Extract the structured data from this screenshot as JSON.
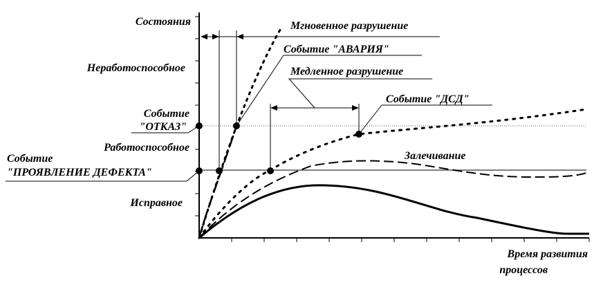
{
  "axes": {
    "y_title": "Состояния",
    "x_title_line1": "Время развития",
    "x_title_line2": "процессов"
  },
  "states": {
    "inoperable": "Неработоспособное",
    "operable": "Работоспособное",
    "serviceable": "Исправное"
  },
  "events": {
    "failure_line1": "Событие",
    "failure_line2": "\"ОТКАЗ\"",
    "defect_line1": "Событие",
    "defect_line2": "\"ПРОЯВЛЕНИЕ ДЕФЕКТА\""
  },
  "annotations": {
    "instant_destruction": "Мгновенное разрушение",
    "accident_event": "Событие \"АВАРИЯ\"",
    "slow_destruction": "Медленное разрушение",
    "dsd_event": "Событие \"ДСД\"",
    "healing": "Залечивание"
  },
  "colors": {
    "ink": "#000000",
    "background": "#ffffff",
    "threshold_line": "#555555"
  }
}
